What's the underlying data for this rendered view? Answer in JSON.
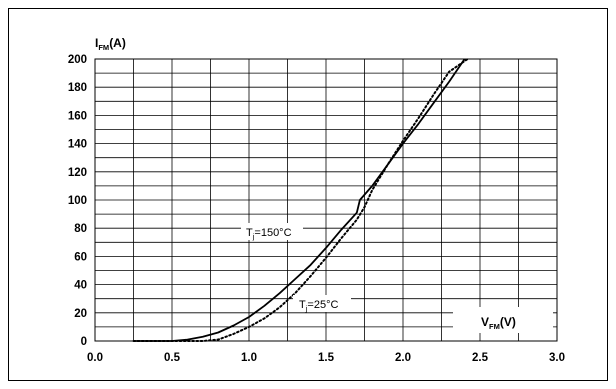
{
  "chart_data": {
    "type": "line",
    "title": "",
    "xlabel": {
      "main": "V",
      "sub": "FM",
      "unit": "(V)"
    },
    "ylabel": {
      "main": "I",
      "sub": "FM",
      "unit": "(A)"
    },
    "xlim": [
      0,
      3
    ],
    "ylim": [
      0,
      200
    ],
    "x_ticks": [
      "0.0",
      "0.5",
      "1.0",
      "1.5",
      "2.0",
      "2.5",
      "3.0"
    ],
    "y_ticks": [
      "0",
      "20",
      "40",
      "60",
      "80",
      "100",
      "120",
      "140",
      "160",
      "180",
      "200"
    ],
    "x_minor_step": 0.25,
    "y_step": 10,
    "grid": true,
    "series": [
      {
        "name": "Tj=150°C",
        "label_main": "T",
        "label_sub": "j",
        "label_rest": "=150°C",
        "style": "solid",
        "color": "#000000",
        "points": [
          [
            0.25,
            0
          ],
          [
            0.5,
            0
          ],
          [
            0.6,
            1
          ],
          [
            0.7,
            3
          ],
          [
            0.8,
            6
          ],
          [
            0.9,
            11
          ],
          [
            1.0,
            17
          ],
          [
            1.1,
            25
          ],
          [
            1.2,
            34
          ],
          [
            1.3,
            44
          ],
          [
            1.4,
            54
          ],
          [
            1.5,
            66
          ],
          [
            1.6,
            79
          ],
          [
            1.7,
            91
          ],
          [
            1.72,
            100
          ],
          [
            1.8,
            110
          ],
          [
            1.9,
            125
          ],
          [
            2.0,
            140
          ],
          [
            2.1,
            154
          ],
          [
            2.2,
            169
          ],
          [
            2.3,
            184
          ],
          [
            2.4,
            200
          ]
        ]
      },
      {
        "name": "Tj=25°C",
        "label_main": "T",
        "label_sub": "j",
        "label_rest": "=25°C",
        "style": "dotted",
        "color": "#000000",
        "points": [
          [
            0.25,
            0
          ],
          [
            0.7,
            0
          ],
          [
            0.8,
            1
          ],
          [
            0.9,
            5
          ],
          [
            1.0,
            10
          ],
          [
            1.1,
            16
          ],
          [
            1.2,
            24
          ],
          [
            1.3,
            34
          ],
          [
            1.4,
            46
          ],
          [
            1.5,
            59
          ],
          [
            1.6,
            73
          ],
          [
            1.7,
            86
          ],
          [
            1.75,
            95
          ],
          [
            1.8,
            107
          ],
          [
            1.9,
            125
          ],
          [
            2.0,
            142
          ],
          [
            2.1,
            158
          ],
          [
            2.2,
            175
          ],
          [
            2.3,
            191
          ],
          [
            2.42,
            200
          ]
        ]
      }
    ]
  }
}
